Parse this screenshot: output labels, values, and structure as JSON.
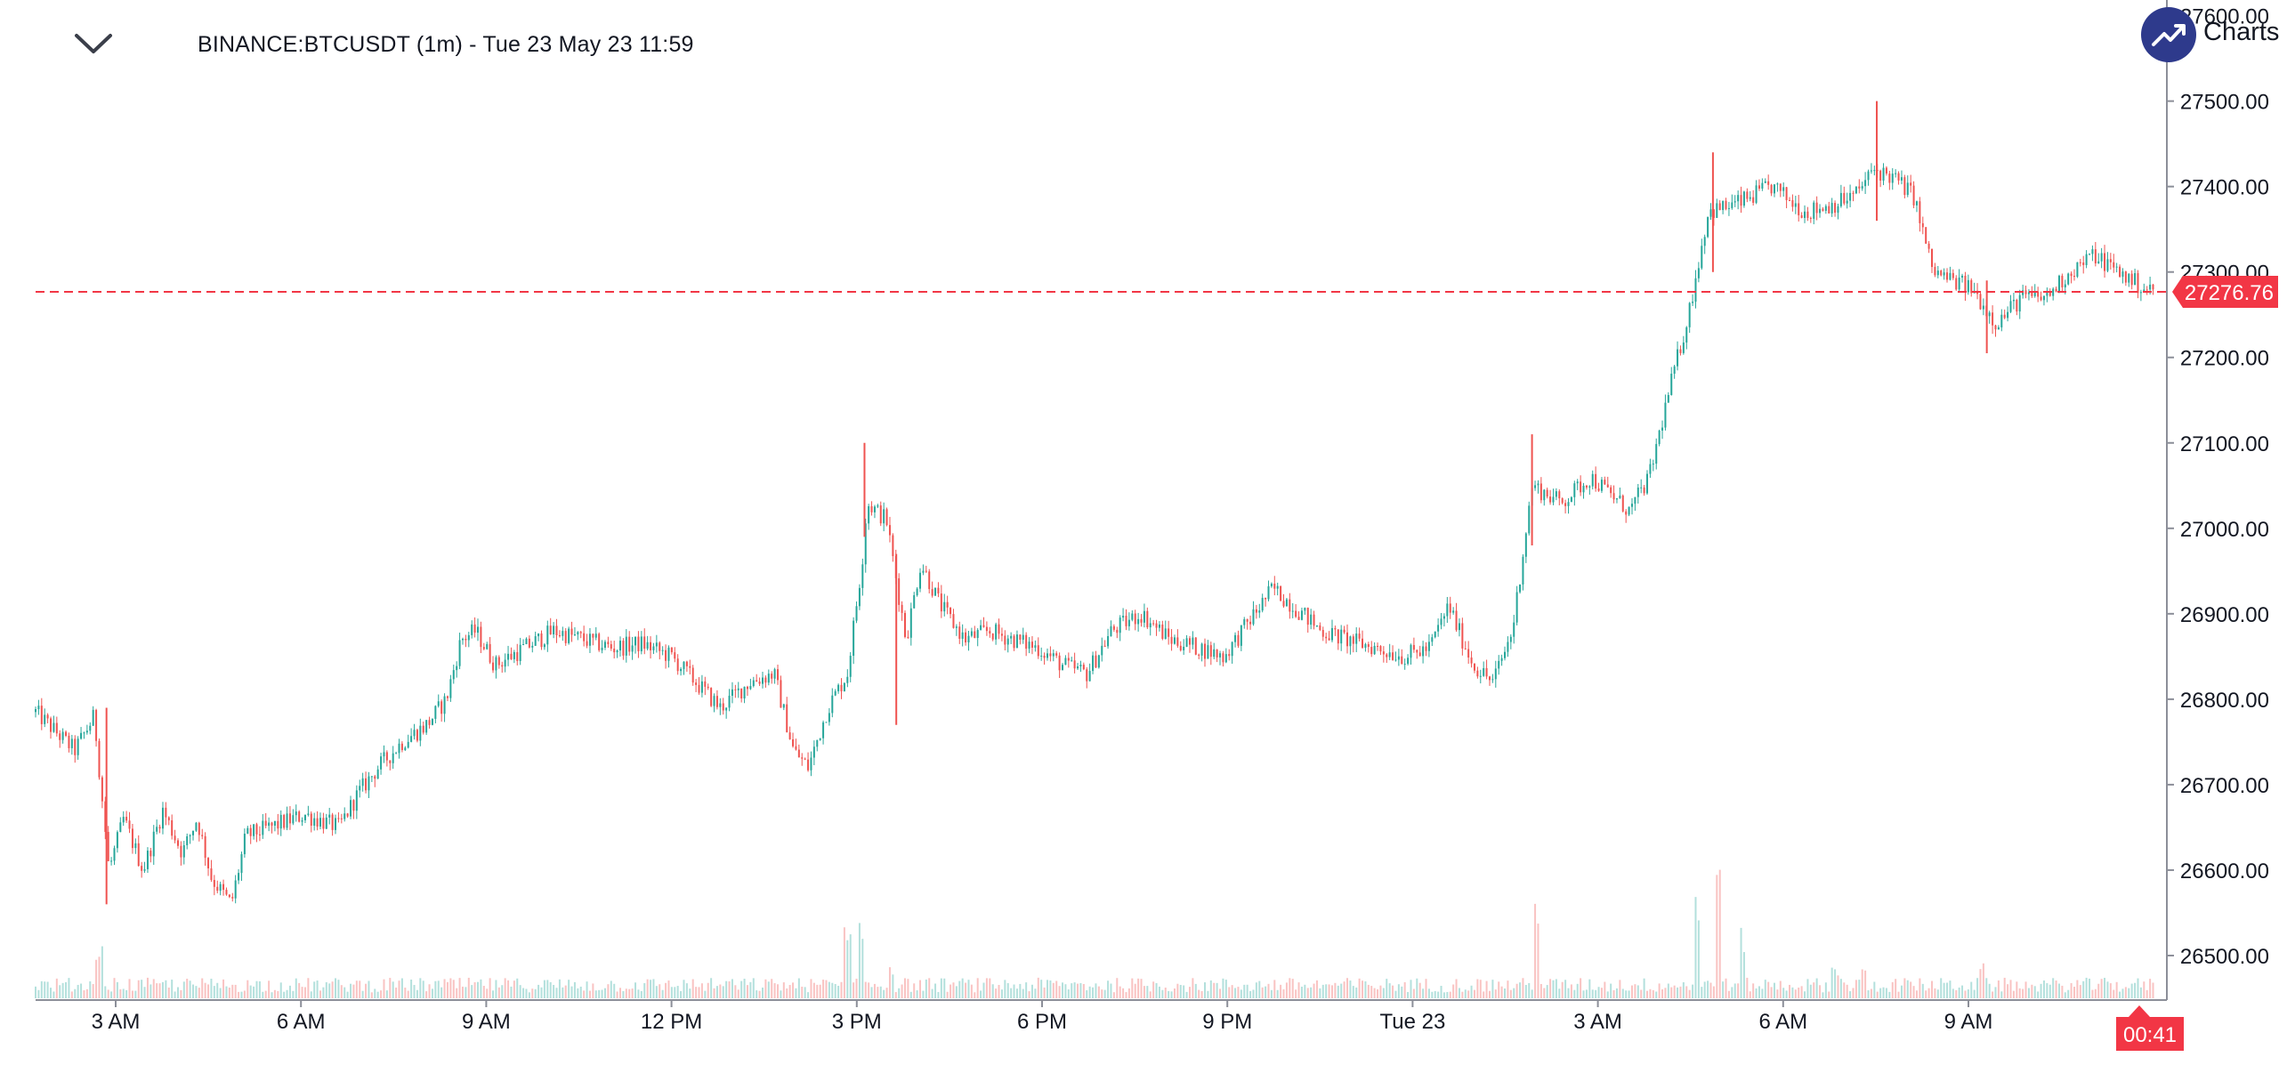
{
  "header": {
    "title": "BINANCE:BTCUSDT (1m) - Tue 23 May 23 11:59",
    "menu_icon": "chevron-down-icon"
  },
  "brand": {
    "logo_icon": "trend-up-icon",
    "text": "Charts p"
  },
  "colors": {
    "up": "#26a69a",
    "down": "#ef5350",
    "last_price": "#f23645",
    "axis_text": "#131722",
    "logo_bg": "#2e3a8c"
  },
  "chart_data": {
    "type": "candlestick",
    "title": "BINANCE:BTCUSDT (1m) - Tue 23 May 23 11:59",
    "symbol": "BINANCE:BTCUSDT",
    "interval": "1m",
    "y_axis": {
      "position": "right",
      "ticks": [
        "26500.00",
        "26600.00",
        "26700.00",
        "26800.00",
        "26900.00",
        "27000.00",
        "27100.00",
        "27200.00",
        "27300.00",
        "27400.00",
        "27500.00",
        "27600.00"
      ],
      "ylim": [
        26450,
        27610
      ]
    },
    "x_axis": {
      "ticks": [
        "3 AM",
        "6 AM",
        "9 AM",
        "12 PM",
        "3 PM",
        "6 PM",
        "9 PM",
        "Tue 23",
        "3 AM",
        "6 AM",
        "9 AM"
      ]
    },
    "grid": false,
    "last_price": 27276.76,
    "last_price_label": "27276.76",
    "countdown": "00:41",
    "price_path": [
      [
        0.0,
        26785
      ],
      [
        0.8,
        26740
      ],
      [
        1.2,
        26780
      ],
      [
        1.5,
        26600
      ],
      [
        1.8,
        26660
      ],
      [
        2.2,
        26600
      ],
      [
        2.6,
        26670
      ],
      [
        3.0,
        26620
      ],
      [
        3.3,
        26660
      ],
      [
        3.6,
        26590
      ],
      [
        4.0,
        26560
      ],
      [
        4.3,
        26640
      ],
      [
        4.8,
        26650
      ],
      [
        5.5,
        26665
      ],
      [
        6.2,
        26650
      ],
      [
        6.6,
        26690
      ],
      [
        7.0,
        26720
      ],
      [
        7.5,
        26750
      ],
      [
        8.0,
        26770
      ],
      [
        8.4,
        26800
      ],
      [
        8.7,
        26870
      ],
      [
        9.0,
        26880
      ],
      [
        9.4,
        26840
      ],
      [
        10.0,
        26860
      ],
      [
        10.6,
        26880
      ],
      [
        11.2,
        26870
      ],
      [
        11.8,
        26860
      ],
      [
        12.4,
        26865
      ],
      [
        13.0,
        26850
      ],
      [
        13.5,
        26820
      ],
      [
        14.0,
        26790
      ],
      [
        14.6,
        26820
      ],
      [
        15.1,
        26830
      ],
      [
        15.5,
        26740
      ],
      [
        15.8,
        26720
      ],
      [
        16.2,
        26790
      ],
      [
        16.6,
        26830
      ],
      [
        16.9,
        26960
      ],
      [
        17.0,
        27030
      ],
      [
        17.4,
        27010
      ],
      [
        17.6,
        26940
      ],
      [
        17.8,
        26870
      ],
      [
        18.1,
        26960
      ],
      [
        18.5,
        26910
      ],
      [
        19.0,
        26870
      ],
      [
        19.5,
        26880
      ],
      [
        20.0,
        26870
      ],
      [
        20.5,
        26860
      ],
      [
        21.0,
        26840
      ],
      [
        21.5,
        26830
      ],
      [
        22.0,
        26880
      ],
      [
        22.6,
        26900
      ],
      [
        23.2,
        26870
      ],
      [
        23.8,
        26860
      ],
      [
        24.3,
        26850
      ],
      [
        24.8,
        26890
      ],
      [
        25.3,
        26930
      ],
      [
        25.8,
        26905
      ],
      [
        26.3,
        26880
      ],
      [
        26.8,
        26870
      ],
      [
        27.4,
        26860
      ],
      [
        28.0,
        26850
      ],
      [
        28.5,
        26860
      ],
      [
        28.9,
        26910
      ],
      [
        29.1,
        26880
      ],
      [
        29.4,
        26840
      ],
      [
        29.8,
        26820
      ],
      [
        30.2,
        26880
      ],
      [
        30.6,
        27050
      ],
      [
        31.2,
        27030
      ],
      [
        31.8,
        27060
      ],
      [
        32.2,
        27040
      ],
      [
        32.6,
        27020
      ],
      [
        33.0,
        27060
      ],
      [
        33.4,
        27160
      ],
      [
        33.8,
        27250
      ],
      [
        34.2,
        27370
      ],
      [
        34.8,
        27380
      ],
      [
        35.5,
        27400
      ],
      [
        36.2,
        27370
      ],
      [
        36.8,
        27380
      ],
      [
        37.2,
        27390
      ],
      [
        37.6,
        27420
      ],
      [
        38.0,
        27410
      ],
      [
        38.4,
        27390
      ],
      [
        38.8,
        27300
      ],
      [
        39.2,
        27290
      ],
      [
        39.6,
        27280
      ],
      [
        40.1,
        27240
      ],
      [
        40.6,
        27270
      ],
      [
        41.1,
        27270
      ],
      [
        41.6,
        27300
      ],
      [
        42.1,
        27320
      ],
      [
        42.6,
        27300
      ],
      [
        43.0,
        27285
      ],
      [
        43.3,
        27277
      ]
    ],
    "volume_spikes": [
      [
        1.3,
        0.18
      ],
      [
        2.4,
        0.06
      ],
      [
        16.6,
        0.25
      ],
      [
        16.9,
        0.28
      ],
      [
        17.5,
        0.12
      ],
      [
        30.7,
        0.4
      ],
      [
        34.0,
        0.35
      ],
      [
        34.4,
        0.6
      ],
      [
        34.9,
        0.25
      ],
      [
        36.8,
        0.12
      ],
      [
        37.4,
        0.1
      ],
      [
        39.8,
        0.12
      ]
    ]
  }
}
